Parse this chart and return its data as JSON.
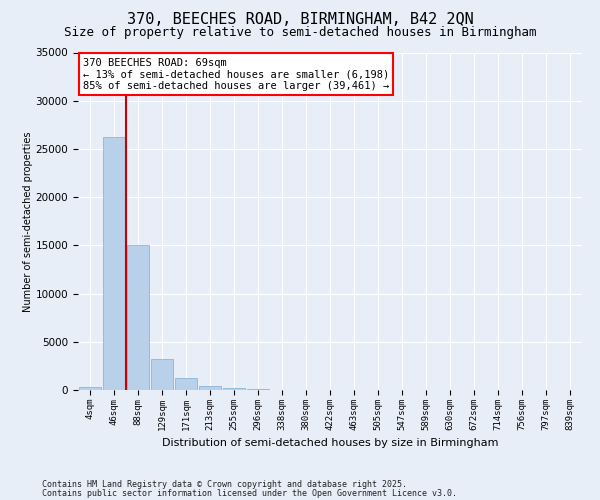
{
  "title1": "370, BEECHES ROAD, BIRMINGHAM, B42 2QN",
  "title2": "Size of property relative to semi-detached houses in Birmingham",
  "xlabel": "Distribution of semi-detached houses by size in Birmingham",
  "ylabel": "Number of semi-detached properties",
  "footnote1": "Contains HM Land Registry data © Crown copyright and database right 2025.",
  "footnote2": "Contains public sector information licensed under the Open Government Licence v3.0.",
  "annotation_title": "370 BEECHES ROAD: 69sqm",
  "annotation_line1": "← 13% of semi-detached houses are smaller (6,198)",
  "annotation_line2": "85% of semi-detached houses are larger (39,461) →",
  "bar_color": "#b8d0ea",
  "bar_edge_color": "#7aafd4",
  "redline_color": "#cc0000",
  "bg_color": "#e8eef8",
  "grid_color": "#ffffff",
  "categories": [
    "4sqm",
    "46sqm",
    "88sqm",
    "129sqm",
    "171sqm",
    "213sqm",
    "255sqm",
    "296sqm",
    "338sqm",
    "380sqm",
    "422sqm",
    "463sqm",
    "505sqm",
    "547sqm",
    "589sqm",
    "630sqm",
    "672sqm",
    "714sqm",
    "756sqm",
    "797sqm",
    "839sqm"
  ],
  "values": [
    350,
    26200,
    15000,
    3200,
    1200,
    450,
    200,
    80,
    0,
    0,
    0,
    0,
    0,
    0,
    0,
    0,
    0,
    0,
    0,
    0,
    0
  ],
  "redline_x": 1.52,
  "ylim": [
    0,
    35000
  ],
  "yticks": [
    0,
    5000,
    10000,
    15000,
    20000,
    25000,
    30000,
    35000
  ],
  "title1_fontsize": 11,
  "title2_fontsize": 9,
  "xlabel_fontsize": 8,
  "ylabel_fontsize": 7,
  "annot_fontsize": 7.5,
  "footnote_fontsize": 6
}
